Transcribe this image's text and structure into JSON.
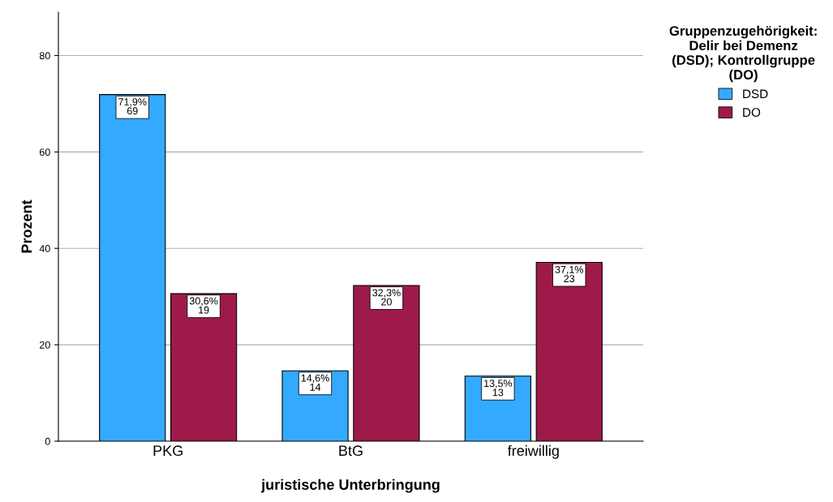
{
  "chart_data": {
    "type": "bar",
    "xlabel": "juristische Unterbringung",
    "ylabel": "Prozent",
    "legend_title": "Gruppenzugehörigkeit:\nDelir bei Demenz\n(DSD); Kontrollgruppe\n(DO)",
    "categories": [
      "PKG",
      "BtG",
      "freiwillig"
    ],
    "series": [
      {
        "name": "DSD",
        "color": "#33aaff",
        "values": [
          71.9,
          14.6,
          13.5
        ],
        "value_labels": [
          "71,9%\n69",
          "14,6%\n14",
          "13,5%\n13"
        ]
      },
      {
        "name": "DO",
        "color": "#9e1a4b",
        "values": [
          30.6,
          32.3,
          37.1
        ],
        "value_labels": [
          "30,6%\n19",
          "32,3%\n20",
          "37,1%\n23"
        ]
      }
    ],
    "ylim": [
      0,
      89
    ],
    "yticks": [
      0,
      20,
      40,
      60,
      80
    ],
    "grid": "y",
    "legend": "top right"
  }
}
